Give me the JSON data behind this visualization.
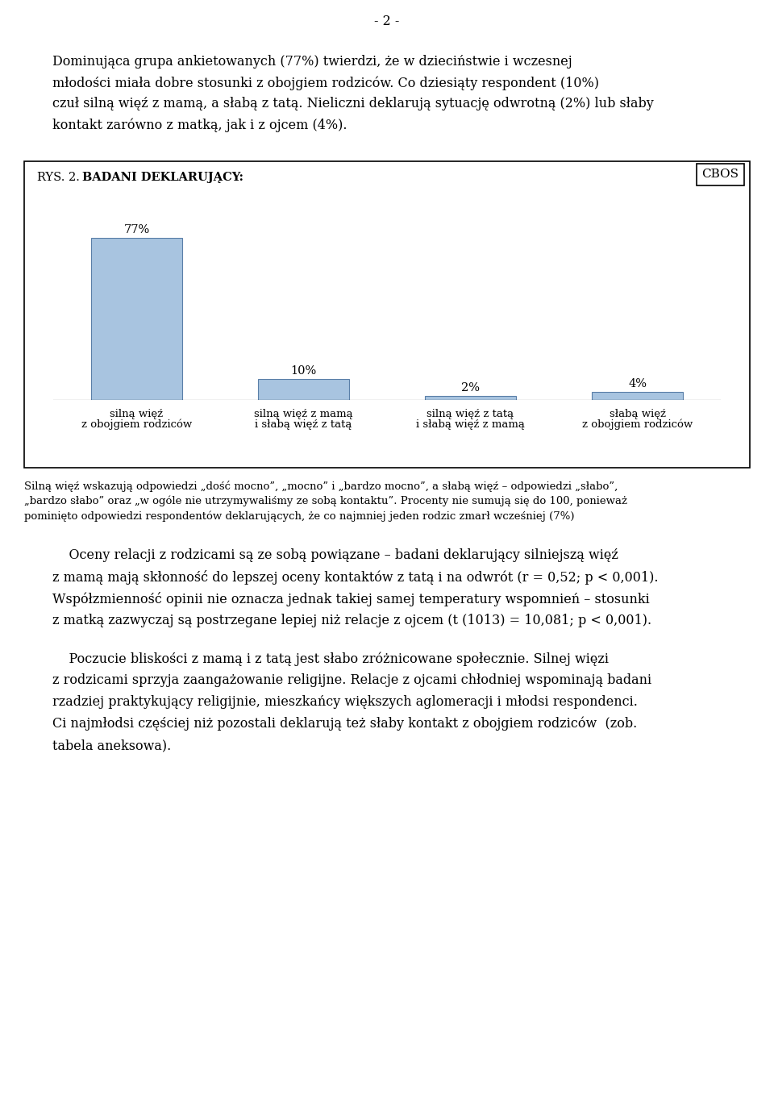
{
  "page_number": "- 2 -",
  "paragraph1_line1": "Dominująca grupa ankietowanych (77%) twierdzi, że w dzieciństwie i wczesnej",
  "paragraph1_line2": "młodości miała dobre stosunki z obojgiem rodziców. Co dziesiąty respondent (10%)",
  "paragraph1_line3": "czuł silną więź z mamą, a słabą z tatą. Nieliczni deklarują sytuację odwrotną (2%) lub słaby",
  "paragraph1_line4": "kontakt zarówno z matką, jak i z ojcem (4%).",
  "chart_label": "RYS. 2. ",
  "chart_title": "BADANI DEKLARUJĄCY:",
  "cbos_label": "CBOS",
  "bars": [
    {
      "value": 77,
      "label1": "silną więź",
      "label2": "z obojgiem rodziców"
    },
    {
      "value": 10,
      "label1": "silną więź z mamą",
      "label2": "i słabą więź z tatą"
    },
    {
      "value": 2,
      "label1": "silną więź z tatą",
      "label2": "i słabą więź z mamą"
    },
    {
      "value": 4,
      "label1": "słabą więź",
      "label2": "z obojgiem rodziców"
    }
  ],
  "bar_color": "#a8c4e0",
  "bar_edge_color": "#5a7fa8",
  "footnote_line1": "Silną więź wskazują odpowiedzi „dość mocno”, „mocno” i „bardzo mocno”, a słabą więź – odpowiedzi „słabo”,",
  "footnote_line2": "„bardzo słabo” oraz „w ogóle nie utrzymywaliśmy ze sobą kontaktu”. Procenty nie sumują się do 100, ponieważ",
  "footnote_line3": "pominięto odpowiedzi respondentów deklarujących, że co najmniej jeden rodzic zmarł wcześniej (7%)",
  "para2_indent": "    Oceny relacji z rodzicami są ze sobą powiązane – badani deklarujący silniejszą więź",
  "para2_line2": "z mamą mają skłonność do lepszej oceny kontaktów z tatą i na odwrót (r = 0,52; p < 0,001).",
  "para2_line3": "Współzmienność opinii nie oznacza jednak takiej samej temperatury wspomnień – stosunki",
  "para2_line4": "z matką zazwyczaj są postrzegane lepiej niż relacje z ojcem (t (1013) = 10,081; p < 0,001).",
  "para3_indent": "    Poczucie bliskości z mamą i z tatą jest słabo zróżnicowane społecznie. Silnej więzi",
  "para3_line2": "z rodzicami sprzyja zaangażowanie religijne. Relacje z ojcami chłodniej wspominają badani",
  "para3_line3": "rzadziej praktykujący religijnie, mieszkańcy większych aglomeracji i młodsi respondenci.",
  "para3_line4": "Ci najmłodsi częściej niż pozostali deklarują też słaby kontakt z obojgiem rodziców  (zob.",
  "para3_line5": "tabela aneksowa).",
  "font_body": 11.5,
  "font_title": 10.5,
  "font_bar_label": 10.5,
  "font_cat_label": 9.5,
  "font_footnote": 9.5,
  "fig_width": 9.6,
  "fig_height": 13.74,
  "dpi": 100
}
